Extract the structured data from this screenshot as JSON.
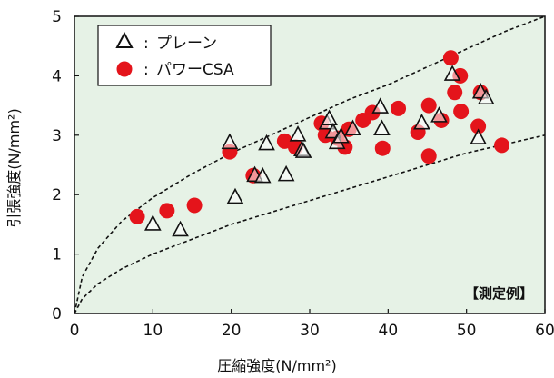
{
  "chart_data": {
    "type": "scatter",
    "xlabel": "圧縮強度(N/mm²)",
    "ylabel": "引張強度(N/mm²)",
    "xlim": [
      0,
      60
    ],
    "ylim": [
      0,
      5
    ],
    "x_ticks": [
      "0",
      "10",
      "20",
      "30",
      "40",
      "50",
      "60"
    ],
    "y_ticks": [
      "0",
      "1",
      "2",
      "3",
      "4",
      "5"
    ],
    "grid": false,
    "legend_placement": "top-left",
    "annotation": "【測定例】",
    "background_color": "#e6f2e6",
    "series": [
      {
        "name": "プレーン",
        "marker": "triangle",
        "color": "#ffffff",
        "points": [
          [
            10,
            1.5
          ],
          [
            13.5,
            1.4
          ],
          [
            19.8,
            2.87
          ],
          [
            20.5,
            1.95
          ],
          [
            23,
            2.32
          ],
          [
            24,
            2.3
          ],
          [
            24.5,
            2.85
          ],
          [
            27,
            2.33
          ],
          [
            28.5,
            3.0
          ],
          [
            29,
            2.75
          ],
          [
            29.2,
            2.72
          ],
          [
            32.2,
            3.2
          ],
          [
            32.5,
            3.27
          ],
          [
            33,
            3.05
          ],
          [
            33.5,
            2.87
          ],
          [
            34,
            2.97
          ],
          [
            35.5,
            3.1
          ],
          [
            39,
            3.47
          ],
          [
            39.2,
            3.1
          ],
          [
            44.3,
            3.2
          ],
          [
            46.5,
            3.32
          ],
          [
            48.2,
            4.02
          ],
          [
            51.5,
            2.95
          ],
          [
            51.8,
            3.72
          ],
          [
            52.5,
            3.62
          ]
        ]
      },
      {
        "name": "パワーCSA",
        "marker": "circle",
        "color": "#e4141b",
        "points": [
          [
            8,
            1.63
          ],
          [
            11.8,
            1.73
          ],
          [
            15.3,
            1.82
          ],
          [
            19.8,
            2.72
          ],
          [
            22.8,
            2.32
          ],
          [
            26.8,
            2.9
          ],
          [
            28.2,
            2.8
          ],
          [
            31.5,
            3.2
          ],
          [
            32,
            3.0
          ],
          [
            33.5,
            2.95
          ],
          [
            34.5,
            2.8
          ],
          [
            35,
            3.1
          ],
          [
            36.8,
            3.25
          ],
          [
            38,
            3.38
          ],
          [
            39.3,
            2.78
          ],
          [
            41.3,
            3.45
          ],
          [
            43.8,
            3.05
          ],
          [
            45.2,
            2.65
          ],
          [
            45.2,
            3.5
          ],
          [
            46.8,
            3.25
          ],
          [
            48,
            4.3
          ],
          [
            48.5,
            3.72
          ],
          [
            49.2,
            4.0
          ],
          [
            49.3,
            3.4
          ],
          [
            51.5,
            3.15
          ],
          [
            51.8,
            3.72
          ],
          [
            54.5,
            2.83
          ]
        ]
      }
    ],
    "envelope_lines": [
      {
        "style": "dashed",
        "points": [
          [
            0,
            0.0
          ],
          [
            1,
            0.62
          ],
          [
            3,
            1.1
          ],
          [
            6,
            1.55
          ],
          [
            10,
            1.95
          ],
          [
            15,
            2.35
          ],
          [
            20,
            2.7
          ],
          [
            25,
            3.0
          ],
          [
            30,
            3.3
          ],
          [
            35,
            3.6
          ],
          [
            40,
            3.85
          ],
          [
            45,
            4.15
          ],
          [
            50,
            4.45
          ],
          [
            55,
            4.75
          ],
          [
            60,
            5.0
          ]
        ]
      },
      {
        "style": "dashed",
        "points": [
          [
            0,
            0.0
          ],
          [
            1,
            0.25
          ],
          [
            3,
            0.5
          ],
          [
            6,
            0.75
          ],
          [
            10,
            1.0
          ],
          [
            15,
            1.25
          ],
          [
            20,
            1.5
          ],
          [
            25,
            1.7
          ],
          [
            30,
            1.9
          ],
          [
            35,
            2.1
          ],
          [
            40,
            2.3
          ],
          [
            45,
            2.5
          ],
          [
            50,
            2.7
          ],
          [
            55,
            2.85
          ],
          [
            60,
            3.0
          ]
        ]
      }
    ]
  }
}
